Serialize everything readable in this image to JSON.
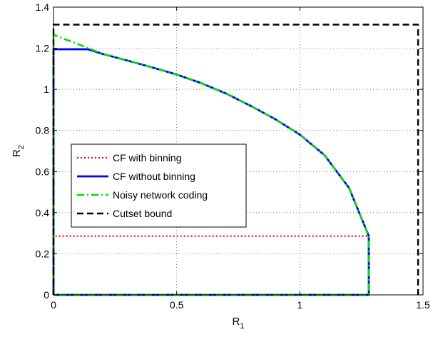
{
  "chart_data": {
    "type": "line",
    "xlabel": "R",
    "xlabel_sub": "1",
    "ylabel": "R",
    "ylabel_sub": "2",
    "xlim": [
      0,
      1.5
    ],
    "ylim": [
      0,
      1.4
    ],
    "xticks": [
      0,
      0.5,
      1,
      1.5
    ],
    "xtick_labels": [
      "0",
      "0.5",
      "1",
      "1.5"
    ],
    "yticks": [
      0,
      0.2,
      0.4,
      0.6,
      0.8,
      1,
      1.2,
      1.4
    ],
    "ytick_labels": [
      "0",
      "0.2",
      "0.4",
      "0.6",
      "0.8",
      "1",
      "1.2",
      "1.4"
    ],
    "grid": true,
    "legend_position": "center-left",
    "series": [
      {
        "name": "CF with binning",
        "color": "#ff0000",
        "style": "dotted",
        "x": [
          0,
          0,
          1.28,
          1.28,
          0
        ],
        "y": [
          0,
          0.286,
          0.286,
          0,
          0
        ]
      },
      {
        "name": "CF without binning",
        "color": "#0000ff",
        "style": "solid",
        "x": [
          0,
          0,
          0.14,
          0.2,
          0.3,
          0.4,
          0.5,
          0.6,
          0.7,
          0.8,
          0.9,
          1.0,
          1.1,
          1.2,
          1.28,
          1.28,
          0
        ],
        "y": [
          0,
          1.195,
          1.195,
          1.172,
          1.14,
          1.107,
          1.072,
          1.03,
          0.98,
          0.92,
          0.855,
          0.78,
          0.68,
          0.52,
          0.286,
          0,
          0
        ]
      },
      {
        "name": "Noisy network coding",
        "color": "#00dd00",
        "style": "dashdot",
        "x": [
          0,
          0,
          0.1,
          0.2,
          0.3,
          0.4,
          0.5,
          0.6,
          0.7,
          0.8,
          0.9,
          1.0,
          1.1,
          1.2,
          1.28,
          1.28,
          0
        ],
        "y": [
          0,
          1.265,
          1.22,
          1.172,
          1.14,
          1.107,
          1.072,
          1.03,
          0.98,
          0.92,
          0.855,
          0.78,
          0.68,
          0.52,
          0.286,
          0,
          0
        ]
      },
      {
        "name": "Cutset bound",
        "color": "#000000",
        "style": "dashed",
        "x": [
          0,
          0,
          1.48,
          1.48
        ],
        "y": [
          0,
          1.315,
          1.315,
          0
        ]
      }
    ]
  }
}
